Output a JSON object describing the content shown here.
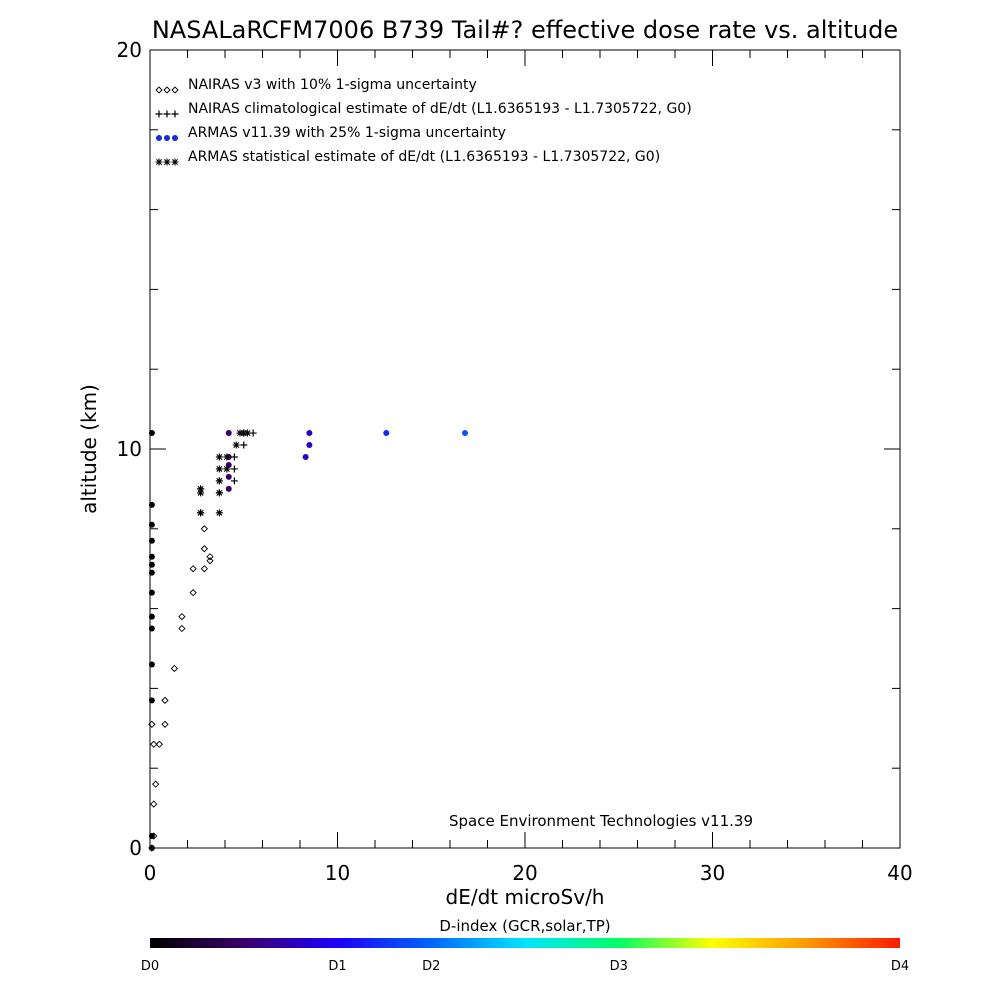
{
  "chart_data": {
    "type": "scatter",
    "title": "NASALaRCFM7006  B739 Tail#? effective dose rate vs. altitude",
    "xlabel": "dE/dt microSv/h",
    "ylabel": "altitude (km)",
    "xlim": [
      0,
      40
    ],
    "ylim": [
      0,
      20
    ],
    "x_ticks": [
      "0",
      "10",
      "20",
      "30",
      "40"
    ],
    "y_ticks": [
      "0",
      "10",
      "20"
    ],
    "legend_position": "top-left",
    "credit": "Space Environment Technologies v11.39",
    "colorbar": {
      "title": "D-index (GCR,solar,TP)",
      "labels": [
        {
          "text": "D0",
          "value": 0
        },
        {
          "text": "D1",
          "value": 0.25
        },
        {
          "text": "D2",
          "value": 0.375
        },
        {
          "text": "D3",
          "value": 0.625
        },
        {
          "text": "D4",
          "value": 1.0
        }
      ],
      "colors": [
        "#000000",
        "#3a006b",
        "#1d00ff",
        "#0066ff",
        "#00e5ff",
        "#00ff66",
        "#ffff00",
        "#ff9900",
        "#ff1a00"
      ]
    },
    "series": [
      {
        "name": "NAIRAS v3 with 10% 1-sigma uncertainty",
        "marker": "diamond",
        "color": "#000000",
        "points": [
          [
            0.1,
            0.0
          ],
          [
            0.2,
            0.3
          ],
          [
            0.2,
            1.1
          ],
          [
            0.3,
            1.6
          ],
          [
            0.2,
            2.6
          ],
          [
            0.5,
            2.6
          ],
          [
            0.1,
            3.1
          ],
          [
            0.8,
            3.1
          ],
          [
            0.8,
            3.7
          ],
          [
            1.3,
            4.5
          ],
          [
            1.7,
            5.5
          ],
          [
            1.7,
            5.8
          ],
          [
            2.3,
            6.4
          ],
          [
            2.3,
            7.0
          ],
          [
            2.9,
            7.0
          ],
          [
            2.9,
            7.5
          ],
          [
            2.9,
            8.0
          ],
          [
            3.2,
            7.2
          ],
          [
            3.2,
            7.3
          ]
        ]
      },
      {
        "name": "NAIRAS climatological estimate of dE/dt (L1.6365193 - L1.7305722, G0)",
        "marker": "plus",
        "color": "#000000",
        "points": [
          [
            2.7,
            8.4
          ],
          [
            2.7,
            9.0
          ],
          [
            3.7,
            8.9
          ],
          [
            3.7,
            9.2
          ],
          [
            4.5,
            9.2
          ],
          [
            4.5,
            9.5
          ],
          [
            4.5,
            9.8
          ],
          [
            5.0,
            10.1
          ],
          [
            5.0,
            10.4
          ],
          [
            5.5,
            10.4
          ]
        ]
      },
      {
        "name": "ARMAS v11.39 with 25% 1-sigma uncertainty",
        "marker": "filled-circle",
        "color": "#1a2bd6",
        "points": [
          [
            0.1,
            0.0
          ],
          [
            0.1,
            0.3
          ],
          [
            0.1,
            3.7
          ],
          [
            0.1,
            4.6
          ],
          [
            0.1,
            5.5
          ],
          [
            0.1,
            5.8
          ],
          [
            0.1,
            6.4
          ],
          [
            0.1,
            6.9
          ],
          [
            0.1,
            7.1
          ],
          [
            0.1,
            7.3
          ],
          [
            0.1,
            7.7
          ],
          [
            0.1,
            8.1
          ],
          [
            0.1,
            8.6
          ],
          [
            0.1,
            10.4
          ],
          [
            4.2,
            9.0
          ],
          [
            4.2,
            9.3
          ],
          [
            4.2,
            9.6
          ],
          [
            4.2,
            9.8
          ],
          [
            4.2,
            10.4
          ],
          [
            8.3,
            9.8
          ],
          [
            8.5,
            10.1
          ],
          [
            8.5,
            10.4
          ],
          [
            12.6,
            10.4
          ],
          [
            16.8,
            10.4
          ]
        ],
        "dindex": [
          0,
          0,
          0,
          0,
          0,
          0,
          0,
          0,
          0,
          0,
          0,
          0,
          0,
          0,
          0.12,
          0.12,
          0.12,
          0.12,
          0.12,
          0.2,
          0.2,
          0.2,
          0.3,
          0.35
        ]
      },
      {
        "name": "ARMAS statistical estimate of dE/dt (L1.6365193 - L1.7305722, G0)",
        "marker": "asterisk",
        "color": "#000000",
        "points": [
          [
            2.7,
            8.4
          ],
          [
            2.7,
            8.9
          ],
          [
            2.7,
            9.0
          ],
          [
            3.7,
            8.4
          ],
          [
            3.7,
            8.9
          ],
          [
            3.7,
            9.2
          ],
          [
            3.7,
            9.5
          ],
          [
            3.7,
            9.8
          ],
          [
            4.1,
            9.5
          ],
          [
            4.1,
            9.8
          ],
          [
            4.6,
            10.1
          ],
          [
            4.8,
            10.4
          ],
          [
            5.0,
            10.4
          ],
          [
            5.2,
            10.4
          ]
        ]
      }
    ]
  }
}
